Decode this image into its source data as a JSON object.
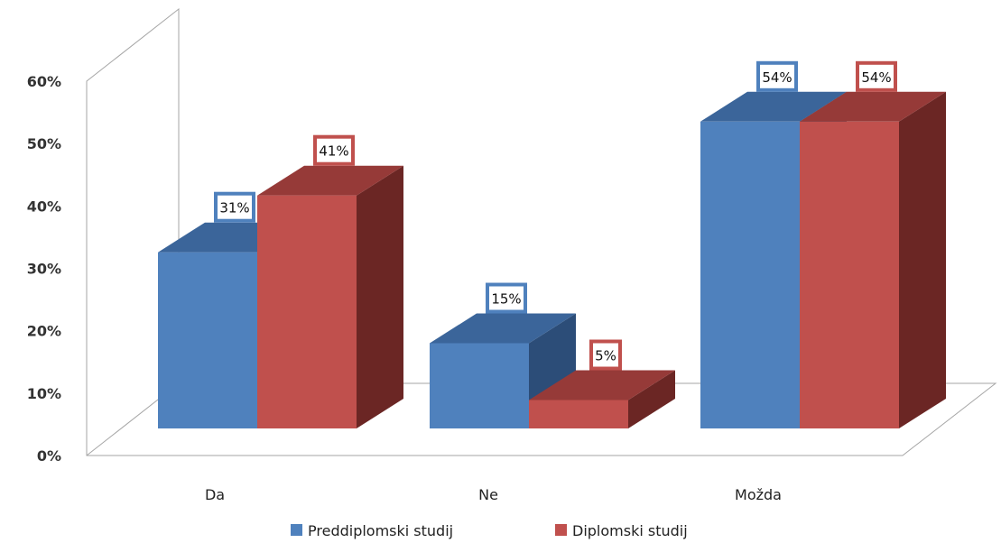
{
  "chart_data": {
    "type": "bar",
    "categories": [
      "Da",
      "Ne",
      "Možda"
    ],
    "series": [
      {
        "name": "Preddiplomski studij",
        "values": [
          31,
          15,
          54
        ],
        "labels": [
          "31%",
          "15%",
          "54%"
        ]
      },
      {
        "name": "Diplomski studij",
        "values": [
          41,
          5,
          54
        ],
        "labels": [
          "41%",
          "5%",
          "54%"
        ]
      }
    ],
    "yticks": [
      "0%",
      "10%",
      "20%",
      "30%",
      "40%",
      "50%",
      "60%"
    ],
    "ylim": [
      0,
      60
    ],
    "legend_position": "bottom",
    "grid": false,
    "colors": {
      "series": [
        {
          "front": "#4f81bd",
          "top": "#3b659a",
          "side": "#2c4d78",
          "border": "#4f81bd"
        },
        {
          "front": "#c0504d",
          "top": "#963a38",
          "side": "#6b2624",
          "border": "#c0504d"
        }
      ]
    }
  }
}
